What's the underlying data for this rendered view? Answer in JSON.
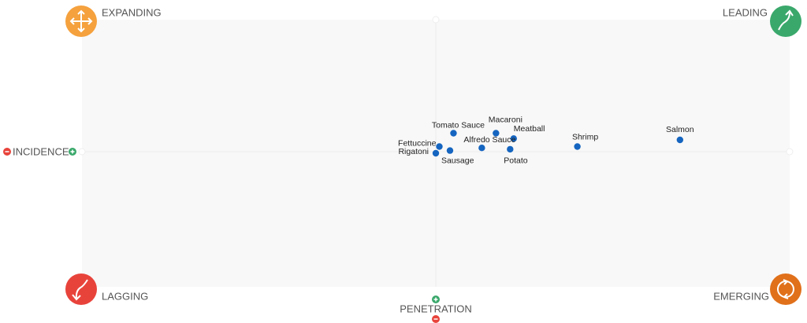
{
  "chart_data": {
    "type": "scatter",
    "x_label": "INCIDENCE",
    "y_label": "PENETRATION",
    "quadrants": [
      "EXPANDING",
      "LEADING",
      "LAGGING",
      "EMERGING"
    ],
    "point_labels": [
      "Salmon",
      "Shrimp",
      "Meatball",
      "Macaroni",
      "Tomato Sauce",
      "Alfredo Sauce",
      "Potato",
      "Fettuccine",
      "Sausage",
      "Rigatoni"
    ],
    "x": [
      69,
      40,
      22,
      17,
      5,
      13,
      21,
      1,
      4,
      0
    ],
    "values": [
      10,
      5,
      11,
      15,
      15,
      4,
      3,
      5,
      2,
      0
    ],
    "color": "#1565c0",
    "xlim": [
      -100,
      100
    ],
    "ylim": [
      -100,
      100
    ]
  }
}
